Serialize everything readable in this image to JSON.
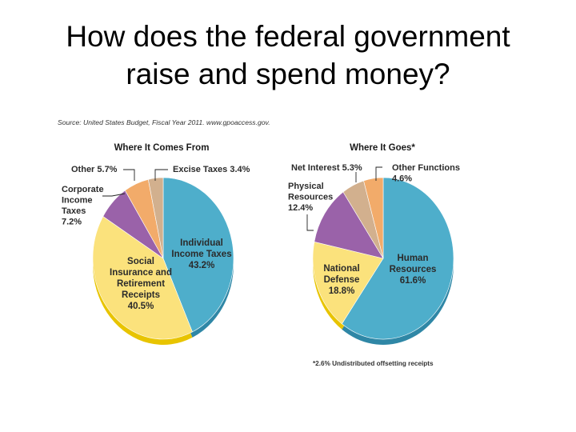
{
  "slide": {
    "title_line1": "How does the federal government",
    "title_line2": "raise and spend money?"
  },
  "source": "Source: United States Budget, Fiscal Year 2011. www.gpoaccess.gov.",
  "footnote": "*2.6% Undistributed offsetting receipts",
  "colors": {
    "blue": "#4eaecb",
    "yellow": "#fbe27c",
    "purple": "#9a62a9",
    "orange": "#f2ab6a",
    "tan": "#d2b08e",
    "blue_edge": "#2f87a6",
    "yellow_edge": "#e8c400"
  },
  "chart_data": [
    {
      "type": "pie",
      "title": "Where It Comes From",
      "slices": [
        {
          "label_lines": [
            "Individual",
            "Income Taxes",
            "43.2%"
          ],
          "value": 43.2,
          "color_key": "blue"
        },
        {
          "label_lines": [
            "Social",
            "Insurance and",
            "Retirement",
            "Receipts",
            "40.5%"
          ],
          "value": 40.5,
          "color_key": "yellow"
        },
        {
          "label_lines": [
            "Corporate",
            "Income",
            "Taxes",
            "7.2%"
          ],
          "value": 7.2,
          "color_key": "purple"
        },
        {
          "label_lines": [
            "Other 5.7%"
          ],
          "value": 5.7,
          "color_key": "orange"
        },
        {
          "label_lines": [
            "Excise Taxes 3.4%"
          ],
          "value": 3.4,
          "color_key": "tan"
        }
      ]
    },
    {
      "type": "pie",
      "title": "Where It Goes*",
      "slices": [
        {
          "label_lines": [
            "Human",
            "Resources",
            "61.6%"
          ],
          "value": 61.6,
          "color_key": "blue"
        },
        {
          "label_lines": [
            "National",
            "Defense",
            "18.8%"
          ],
          "value": 18.8,
          "color_key": "yellow"
        },
        {
          "label_lines": [
            "Physical",
            "Resources",
            "12.4%"
          ],
          "value": 12.4,
          "color_key": "purple"
        },
        {
          "label_lines": [
            "Net Interest 5.3%"
          ],
          "value": 5.3,
          "color_key": "tan"
        },
        {
          "label_lines": [
            "Other Functions",
            "4.6%"
          ],
          "value": 4.6,
          "color_key": "orange"
        }
      ]
    }
  ]
}
